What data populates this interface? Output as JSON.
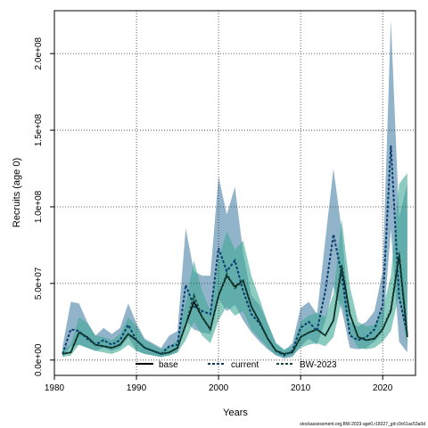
{
  "chart_data": {
    "type": "line",
    "title": "",
    "xlabel": "Years",
    "ylabel": "Recruits (age 0)",
    "xlim": [
      1980,
      2024
    ],
    "ylim": [
      -10000000,
      228000000
    ],
    "xticks": [
      1980,
      1990,
      2000,
      2010,
      2020
    ],
    "yticks": [
      0,
      50000000,
      100000000,
      150000000,
      200000000
    ],
    "ytick_labels": [
      "0.0e+00",
      "5.0e+07",
      "1.0e+08",
      "1.5e+08",
      "2.0e+08"
    ],
    "grid": true,
    "legend_position": "bottom-center",
    "footer": "stockassessment.org,BW-2023-age0,r18327_git:c9c61ac53a0d",
    "x": [
      1981,
      1982,
      1983,
      1984,
      1985,
      1986,
      1987,
      1988,
      1989,
      1990,
      1991,
      1992,
      1993,
      1994,
      1995,
      1996,
      1997,
      1998,
      1999,
      2000,
      2001,
      2002,
      2003,
      2004,
      2005,
      2006,
      2007,
      2008,
      2009,
      2010,
      2011,
      2012,
      2013,
      2014,
      2015,
      2016,
      2017,
      2018,
      2019,
      2020,
      2021,
      2022,
      2023
    ],
    "series": [
      {
        "name": "base",
        "line_color": "#000000",
        "line_style": "solid",
        "values": [
          4000000,
          5000000,
          18000000,
          15000000,
          10000000,
          9000000,
          8000000,
          10000000,
          17000000,
          13000000,
          8000000,
          6000000,
          4000000,
          5000000,
          8000000,
          23000000,
          38000000,
          28000000,
          20000000,
          42000000,
          55000000,
          48000000,
          52000000,
          35000000,
          25000000,
          14000000,
          6000000,
          4000000,
          5000000,
          15000000,
          18000000,
          20000000,
          16000000,
          26000000,
          60000000,
          30000000,
          15000000,
          13000000,
          14000000,
          20000000,
          32000000,
          68000000,
          15000000
        ]
      },
      {
        "name": "current",
        "line_color": "#0a3c6e",
        "line_style": "dashed",
        "band_color": "#4a82a6",
        "values": [
          4000000,
          20000000,
          19000000,
          14000000,
          10000000,
          13000000,
          10000000,
          13000000,
          23000000,
          13000000,
          8000000,
          6000000,
          4000000,
          9000000,
          10000000,
          49000000,
          35000000,
          32000000,
          30000000,
          73000000,
          58000000,
          65000000,
          45000000,
          30000000,
          24000000,
          14000000,
          6000000,
          3000000,
          6000000,
          21000000,
          25000000,
          19000000,
          45000000,
          82000000,
          56000000,
          16000000,
          13000000,
          15000000,
          20000000,
          36000000,
          140000000,
          41000000,
          17000000
        ],
        "band_lower": [
          2000000,
          9000000,
          10000000,
          8000000,
          6000000,
          8000000,
          6000000,
          8000000,
          15000000,
          6000000,
          4000000,
          3000000,
          2000000,
          3000000,
          5000000,
          26000000,
          20000000,
          18000000,
          17000000,
          40000000,
          32000000,
          36000000,
          26000000,
          18000000,
          12000000,
          7000000,
          3000000,
          1000000,
          2000000,
          9000000,
          14000000,
          10000000,
          25000000,
          48000000,
          33000000,
          8000000,
          7000000,
          8000000,
          12000000,
          18000000,
          85000000,
          12000000,
          5000000
        ],
        "band_upper": [
          9000000,
          38000000,
          37000000,
          25000000,
          16000000,
          21000000,
          17000000,
          21000000,
          37000000,
          24000000,
          14000000,
          11000000,
          8000000,
          16000000,
          19000000,
          86000000,
          58000000,
          55000000,
          55000000,
          120000000,
          95000000,
          113000000,
          70000000,
          42000000,
          36000000,
          24000000,
          11000000,
          6000000,
          11000000,
          34000000,
          38000000,
          30000000,
          78000000,
          125000000,
          85000000,
          25000000,
          22000000,
          25000000,
          32000000,
          58000000,
          222000000,
          93000000,
          115000000
        ]
      },
      {
        "name": "BW-2023",
        "line_color": "#0e4a3c",
        "line_style": "dashed",
        "band_color": "#3fa996",
        "values": [
          4000000,
          5000000,
          18000000,
          15000000,
          10000000,
          9000000,
          8000000,
          10000000,
          17000000,
          13000000,
          8000000,
          6000000,
          4000000,
          5000000,
          8000000,
          23000000,
          42000000,
          28000000,
          20000000,
          42000000,
          56000000,
          47000000,
          52000000,
          35000000,
          25000000,
          14000000,
          6000000,
          4000000,
          5000000,
          15000000,
          18000000,
          20000000,
          16000000,
          26000000,
          62000000,
          30000000,
          15000000,
          13000000,
          14000000,
          20000000,
          33000000,
          70000000,
          16000000
        ],
        "band_lower": [
          2000000,
          3000000,
          10000000,
          8000000,
          6000000,
          5000000,
          4000000,
          6000000,
          10000000,
          6000000,
          4000000,
          3000000,
          2000000,
          3000000,
          5000000,
          13000000,
          25000000,
          16000000,
          11000000,
          26000000,
          35000000,
          29000000,
          32000000,
          20000000,
          14000000,
          8000000,
          3000000,
          2000000,
          3000000,
          8000000,
          10000000,
          11000000,
          9000000,
          15000000,
          38000000,
          17000000,
          8000000,
          7000000,
          8000000,
          12000000,
          19000000,
          43000000,
          8000000
        ],
        "band_upper": [
          7000000,
          10000000,
          28000000,
          24000000,
          16000000,
          15000000,
          13000000,
          17000000,
          28000000,
          22000000,
          13000000,
          10000000,
          7000000,
          9000000,
          13000000,
          38000000,
          65000000,
          45000000,
          32000000,
          66000000,
          84000000,
          72000000,
          78000000,
          55000000,
          40000000,
          24000000,
          11000000,
          7000000,
          9000000,
          25000000,
          29000000,
          31000000,
          28000000,
          43000000,
          92000000,
          48000000,
          25000000,
          22000000,
          23000000,
          33000000,
          55000000,
          115000000,
          122000000
        ]
      }
    ]
  }
}
